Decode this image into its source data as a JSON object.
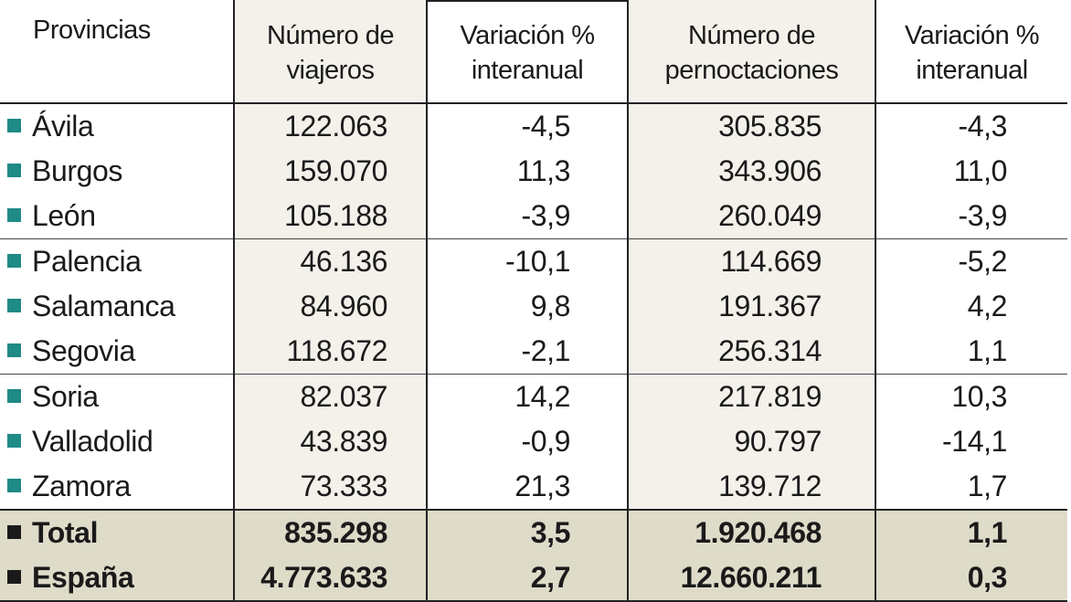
{
  "headers": {
    "provincias": "Provincias",
    "viajeros": "Número de viajeros",
    "var1": "Variación % interanual",
    "pernoctaciones": "Número de pernoctaciones",
    "var2": "Variación % interanual"
  },
  "rows": [
    {
      "name": "Ávila",
      "viajeros": "122.063",
      "var1": "-4,5",
      "pernoct": "305.835",
      "var2": "-4,3"
    },
    {
      "name": "Burgos",
      "viajeros": "159.070",
      "var1": "11,3",
      "pernoct": "343.906",
      "var2": "11,0"
    },
    {
      "name": "León",
      "viajeros": "105.188",
      "var1": "-3,9",
      "pernoct": "260.049",
      "var2": "-3,9"
    },
    {
      "name": "Palencia",
      "viajeros": "46.136",
      "var1": "-10,1",
      "pernoct": "114.669",
      "var2": "-5,2"
    },
    {
      "name": "Salamanca",
      "viajeros": "84.960",
      "var1": "9,8",
      "pernoct": "191.367",
      "var2": "4,2"
    },
    {
      "name": "Segovia",
      "viajeros": "118.672",
      "var1": "-2,1",
      "pernoct": "256.314",
      "var2": "1,1"
    },
    {
      "name": "Soria",
      "viajeros": "82.037",
      "var1": "14,2",
      "pernoct": "217.819",
      "var2": "10,3"
    },
    {
      "name": "Valladolid",
      "viajeros": "43.839",
      "var1": "-0,9",
      "pernoct": "90.797",
      "var2": "-14,1"
    },
    {
      "name": "Zamora",
      "viajeros": "73.333",
      "var1": "21,3",
      "pernoct": "139.712",
      "var2": "1,7"
    }
  ],
  "totals": [
    {
      "name": "Total",
      "viajeros": "835.298",
      "var1": "3,5",
      "pernoct": "1.920.468",
      "var2": "1,1"
    },
    {
      "name": "España",
      "viajeros": "4.773.633",
      "var1": "2,7",
      "pernoct": "12.660.211",
      "var2": "0,3"
    }
  ],
  "colors": {
    "bullet_province": "#1f8a86",
    "bullet_total": "#1a1a1a",
    "shade_column": "#f3f1ea",
    "shade_total": "#dedbc9"
  }
}
